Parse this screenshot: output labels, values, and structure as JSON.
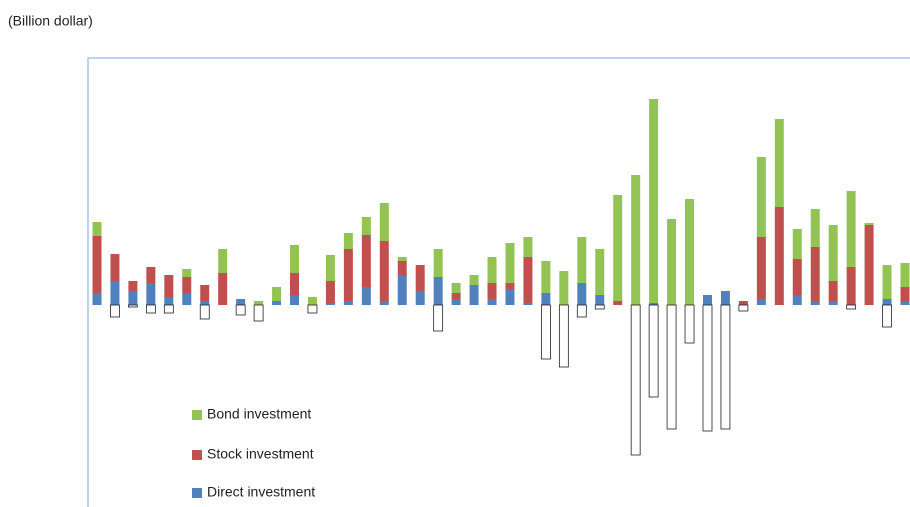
{
  "chart_data": {
    "type": "stacked-bar",
    "title": "(Billion dollar)",
    "categories": [
      null,
      null,
      null,
      null,
      null,
      null,
      null,
      null,
      null,
      null,
      null,
      null,
      null,
      null,
      null,
      null,
      null,
      null,
      null,
      null,
      null,
      null,
      null,
      null,
      null,
      null,
      null,
      null,
      null,
      null,
      null,
      null,
      null,
      null,
      null,
      null,
      null,
      null,
      null,
      null,
      null,
      null,
      null,
      null,
      null,
      null
    ],
    "series": [
      {
        "name": "Direct investment",
        "color": "#4f81bd",
        "values": [
          6,
          12,
          7,
          11,
          4,
          6,
          2,
          0,
          3,
          0,
          2,
          5,
          0,
          1,
          2,
          9,
          2,
          15,
          7,
          14,
          3,
          10,
          3,
          8,
          1,
          6,
          0,
          11,
          5,
          0,
          0,
          1,
          0,
          0,
          5,
          7,
          0,
          3,
          0,
          5,
          2,
          2,
          0,
          0,
          3,
          2
        ]
      },
      {
        "name": "Stock investment",
        "color": "#c0504d",
        "values": [
          28.5,
          13.5,
          5,
          8,
          11,
          8,
          8,
          16,
          0,
          0,
          0,
          11,
          0,
          11,
          26,
          26,
          30,
          7,
          13,
          0,
          3,
          0,
          8,
          3,
          23,
          0,
          0,
          0,
          0,
          2,
          0,
          0,
          0,
          0,
          0,
          0,
          2,
          31,
          49,
          18,
          27,
          10,
          19,
          40,
          0,
          7
        ]
      },
      {
        "name": "Bond investment",
        "color": "#92c353",
        "values": [
          7,
          0,
          0,
          0,
          0,
          4,
          0,
          12,
          0,
          2,
          7,
          14,
          4,
          13,
          8,
          9,
          19,
          2,
          0,
          14,
          5,
          5,
          13,
          20,
          10,
          16,
          17,
          23,
          23,
          53,
          65,
          102,
          43,
          53,
          0,
          0,
          0,
          40,
          44,
          15,
          19,
          28,
          38,
          1,
          17,
          12
        ]
      },
      {
        "name": null,
        "color": "#ffffff",
        "values": [
          0,
          -6,
          -1,
          -4,
          -4,
          0,
          -7,
          0,
          -5,
          -8,
          0,
          0,
          -4,
          0,
          0,
          0,
          0,
          0,
          0,
          -13,
          0,
          0,
          0,
          0,
          0,
          -27,
          -31,
          -6,
          -2,
          0,
          -75,
          -46,
          -62,
          -19,
          -63,
          -62,
          -3,
          0,
          0,
          0,
          0,
          0,
          -2,
          0,
          -11,
          0
        ]
      }
    ],
    "ylim": [
      -100,
      123.5
    ],
    "legend": "lower-left"
  }
}
